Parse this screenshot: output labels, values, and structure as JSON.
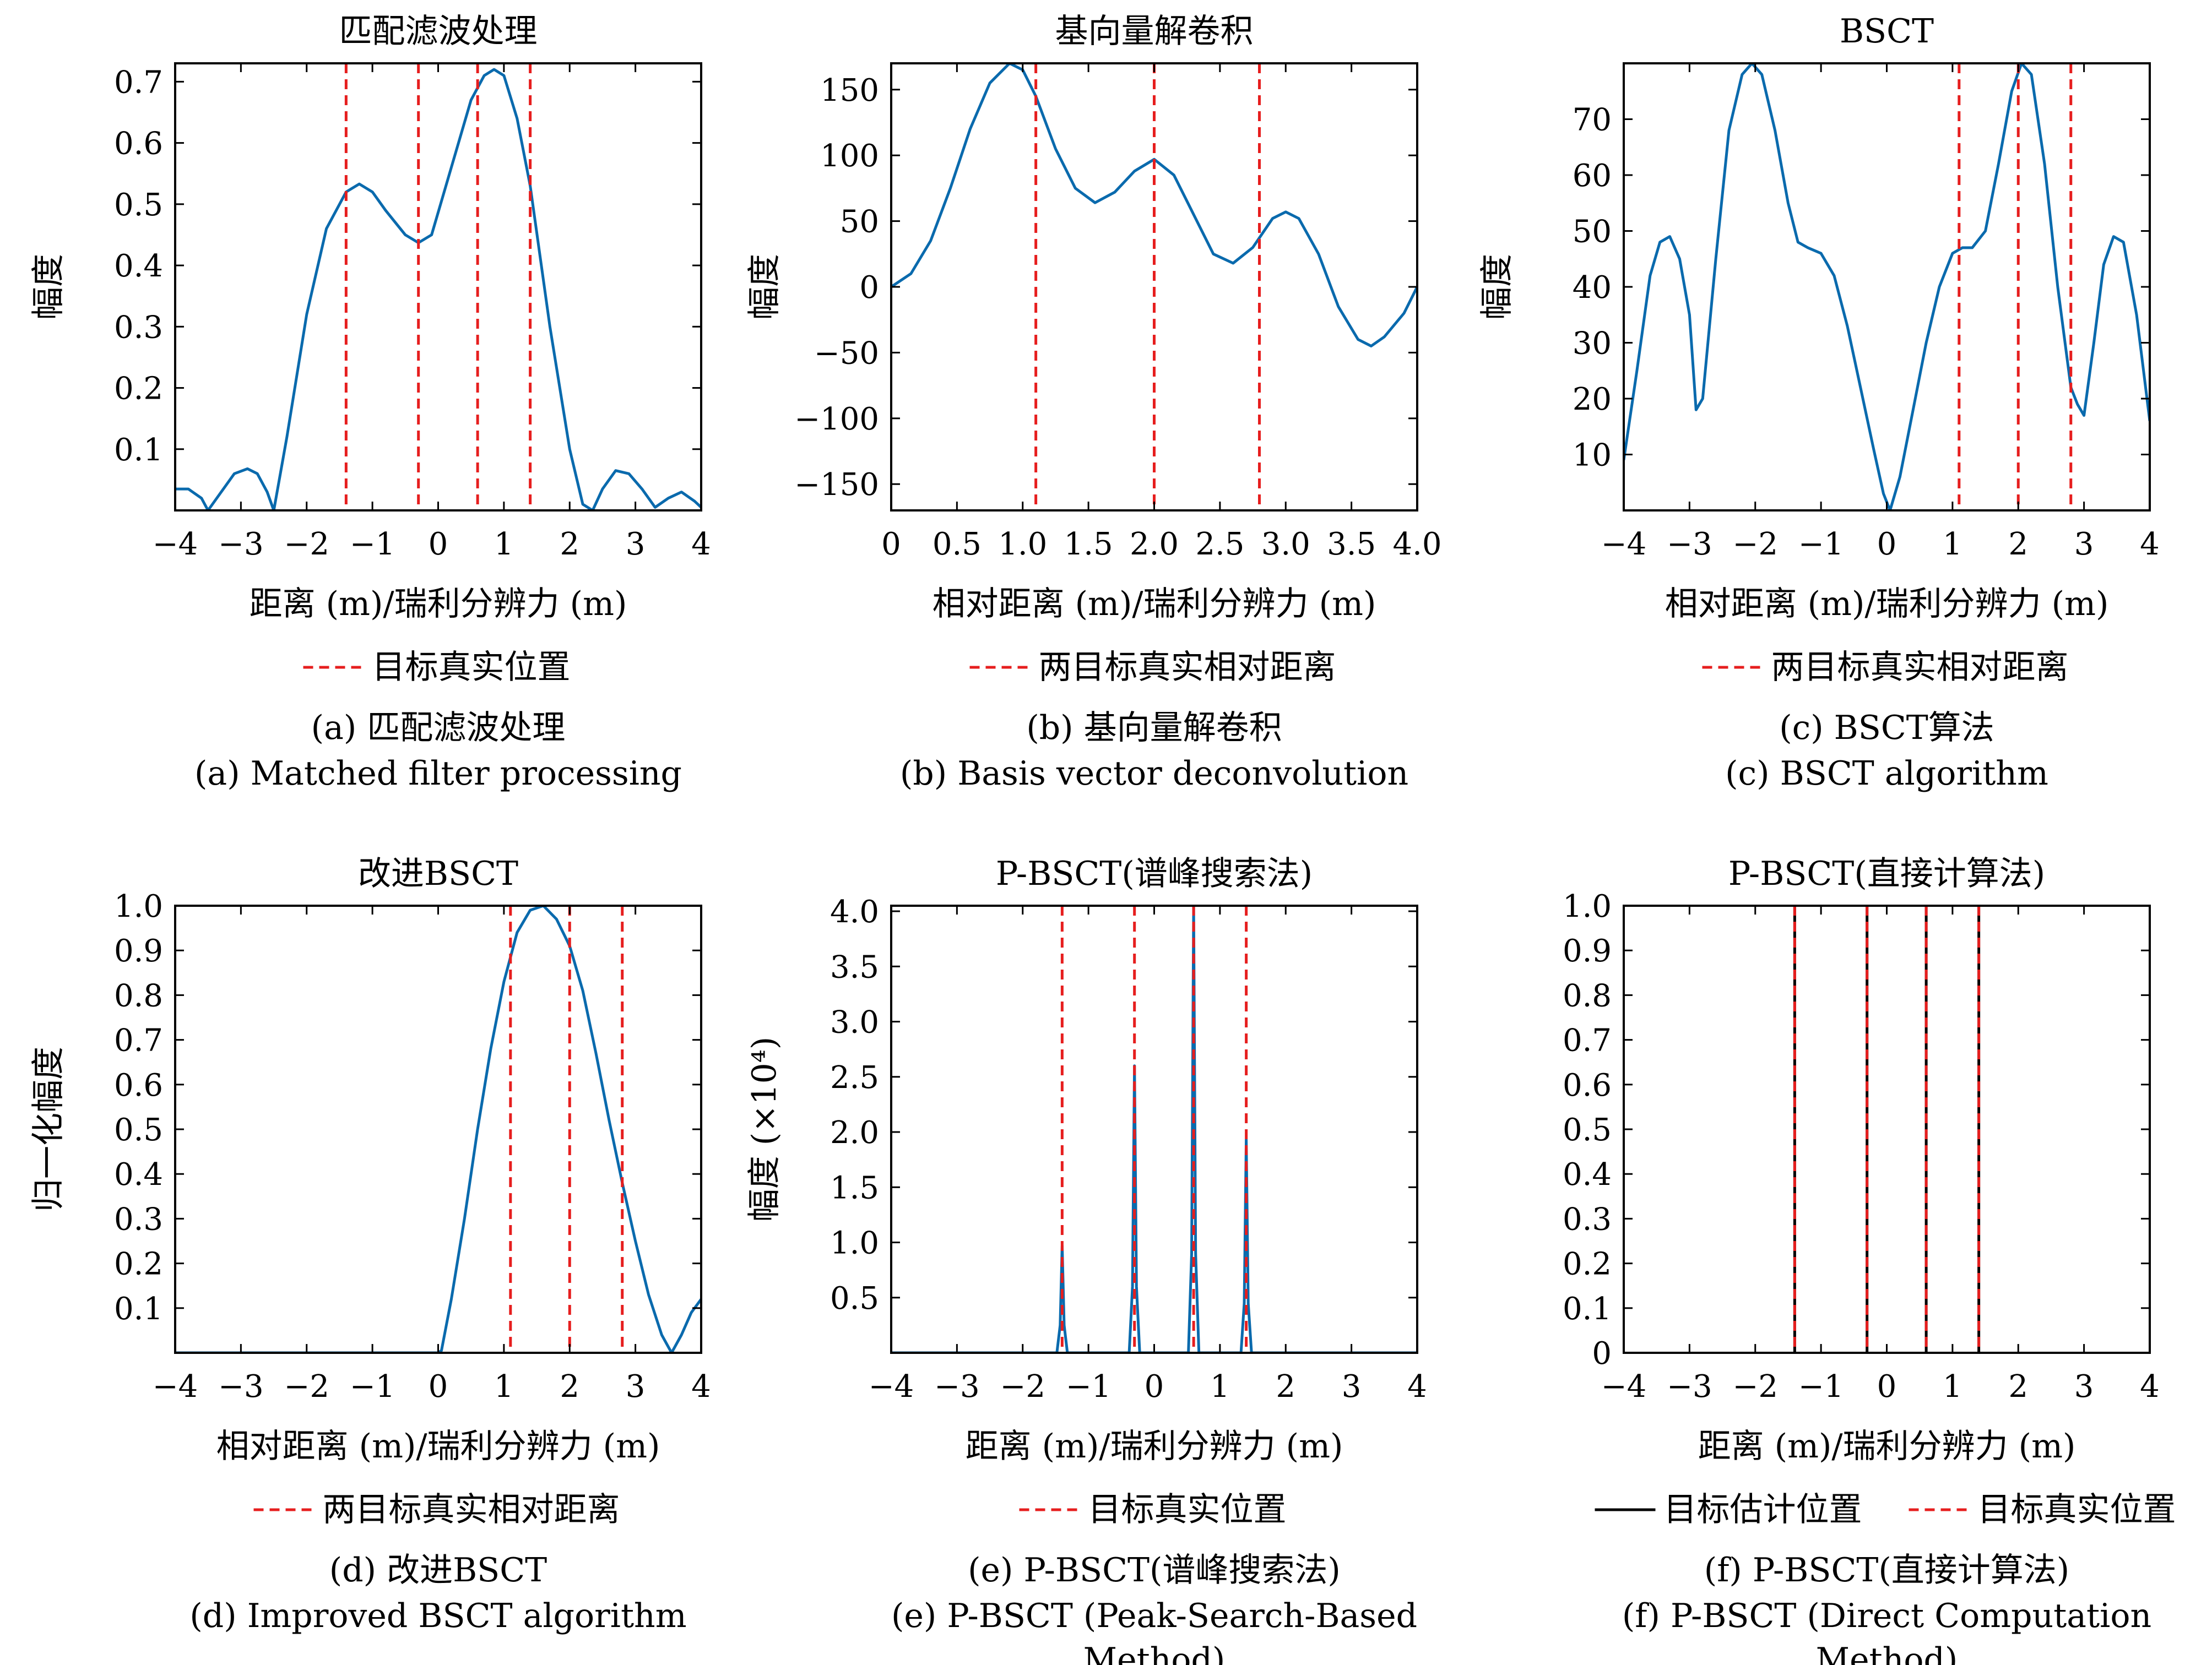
{
  "colors": {
    "curve": "#0a6aad",
    "truth": "#e61e1e",
    "estimate": "#000000",
    "axis": "#000000"
  },
  "chart_data": [
    {
      "id": "a",
      "type": "line",
      "title": "匹配滤波处理",
      "xlabel": "距离 (m)/瑞利分辨力 (m)",
      "ylabel": "幅度",
      "xlim": [
        -4,
        4
      ],
      "ylim": [
        0,
        0.73
      ],
      "xticks": [
        -4,
        -3,
        -2,
        -1,
        0,
        1,
        2,
        3,
        4
      ],
      "xtick_labels": [
        "−4",
        "−3",
        "−2",
        "−1",
        "0",
        "1",
        "2",
        "3",
        "4"
      ],
      "yticks": [
        0.1,
        0.2,
        0.3,
        0.4,
        0.5,
        0.6,
        0.7
      ],
      "ytick_labels": [
        "0.1",
        "0.2",
        "0.3",
        "0.4",
        "0.5",
        "0.6",
        "0.7"
      ],
      "series": [
        {
          "x": [
            -4,
            -3.8,
            -3.6,
            -3.5,
            -3.3,
            -3.1,
            -2.9,
            -2.75,
            -2.6,
            -2.5,
            -2.3,
            -2.0,
            -1.7,
            -1.4,
            -1.2,
            -1.0,
            -0.8,
            -0.5,
            -0.3,
            -0.1,
            0.2,
            0.5,
            0.7,
            0.85,
            1.0,
            1.2,
            1.4,
            1.7,
            2.0,
            2.2,
            2.35,
            2.5,
            2.7,
            2.9,
            3.1,
            3.3,
            3.5,
            3.7,
            3.9,
            4.0
          ],
          "y": [
            0.035,
            0.035,
            0.02,
            0.0,
            0.03,
            0.06,
            0.068,
            0.06,
            0.03,
            0.0,
            0.12,
            0.32,
            0.46,
            0.52,
            0.533,
            0.52,
            0.49,
            0.45,
            0.437,
            0.45,
            0.56,
            0.67,
            0.71,
            0.72,
            0.71,
            0.64,
            0.53,
            0.3,
            0.1,
            0.01,
            0.0,
            0.035,
            0.065,
            0.06,
            0.035,
            0.005,
            0.02,
            0.03,
            0.015,
            0.005
          ]
        }
      ],
      "vlines": [
        -1.4,
        -0.3,
        0.6,
        1.4
      ],
      "legend": [
        {
          "label": "目标真实位置",
          "style": "dashed"
        }
      ]
    },
    {
      "id": "b",
      "type": "line",
      "title": "基向量解卷积",
      "xlabel": "相对距离 (m)/瑞利分辨力 (m)",
      "ylabel": "幅度",
      "xlim": [
        0,
        4
      ],
      "ylim": [
        -170,
        170
      ],
      "xticks": [
        0,
        0.5,
        1,
        1.5,
        2,
        2.5,
        3,
        3.5,
        4
      ],
      "xtick_labels": [
        "0",
        "0.5",
        "1.0",
        "1.5",
        "2.0",
        "2.5",
        "3.0",
        "3.5",
        "4.0"
      ],
      "yticks": [
        -150,
        -100,
        -50,
        0,
        50,
        100,
        150
      ],
      "ytick_labels": [
        "−150",
        "−100",
        "−50",
        "0",
        "50",
        "100",
        "150"
      ],
      "series": [
        {
          "x": [
            0,
            0.15,
            0.3,
            0.45,
            0.6,
            0.75,
            0.9,
            1.0,
            1.1,
            1.25,
            1.4,
            1.55,
            1.7,
            1.85,
            2.0,
            2.15,
            2.3,
            2.45,
            2.6,
            2.75,
            2.9,
            3.0,
            3.1,
            3.25,
            3.4,
            3.55,
            3.65,
            3.75,
            3.9,
            4.0
          ],
          "y": [
            0,
            10,
            35,
            75,
            120,
            155,
            170,
            165,
            145,
            105,
            75,
            64,
            72,
            88,
            97,
            85,
            55,
            25,
            18,
            30,
            52,
            57,
            52,
            25,
            -15,
            -40,
            -45,
            -38,
            -20,
            0
          ]
        }
      ],
      "vlines": [
        1.1,
        2.0,
        2.8
      ],
      "legend": [
        {
          "label": "两目标真实相对距离",
          "style": "dashed"
        }
      ]
    },
    {
      "id": "c",
      "type": "line",
      "title": "BSCT",
      "xlabel": "相对距离 (m)/瑞利分辨力 (m)",
      "ylabel": "幅度",
      "xlim": [
        -4,
        4
      ],
      "ylim": [
        0,
        80
      ],
      "xticks": [
        -4,
        -3,
        -2,
        -1,
        0,
        1,
        2,
        3,
        4
      ],
      "xtick_labels": [
        "−4",
        "−3",
        "−2",
        "−1",
        "0",
        "1",
        "2",
        "3",
        "4"
      ],
      "yticks": [
        10,
        20,
        30,
        40,
        50,
        60,
        70
      ],
      "ytick_labels": [
        "10",
        "20",
        "30",
        "40",
        "50",
        "60",
        "70"
      ],
      "series": [
        {
          "x": [
            -4,
            -3.8,
            -3.6,
            -3.45,
            -3.3,
            -3.15,
            -3.0,
            -2.9,
            -2.8,
            -2.6,
            -2.4,
            -2.2,
            -2.05,
            -1.9,
            -1.7,
            -1.5,
            -1.35,
            -1.2,
            -1.0,
            -0.8,
            -0.6,
            -0.4,
            -0.2,
            -0.05,
            0.05,
            0.2,
            0.4,
            0.6,
            0.8,
            1.0,
            1.15,
            1.3,
            1.5,
            1.7,
            1.9,
            2.05,
            2.2,
            2.4,
            2.6,
            2.8,
            2.9,
            3.0,
            3.15,
            3.3,
            3.45,
            3.6,
            3.8,
            4.0
          ],
          "y": [
            9,
            25,
            42,
            48,
            49,
            45,
            35,
            18,
            20,
            45,
            68,
            78,
            80,
            78,
            68,
            55,
            48,
            47,
            46,
            42,
            33,
            22,
            11,
            3,
            0,
            6,
            18,
            30,
            40,
            46,
            47,
            47,
            50,
            62,
            75,
            80,
            78,
            62,
            40,
            22,
            19,
            17,
            30,
            44,
            49,
            48,
            35,
            16
          ]
        }
      ],
      "vlines": [
        1.1,
        2.0,
        2.8
      ],
      "legend": [
        {
          "label": "两目标真实相对距离",
          "style": "dashed"
        }
      ]
    },
    {
      "id": "d",
      "type": "line",
      "title": "改进BSCT",
      "xlabel": "相对距离 (m)/瑞利分辨力 (m)",
      "ylabel": "归一化幅度",
      "xlim": [
        -4,
        4
      ],
      "ylim": [
        0,
        1.0
      ],
      "xticks": [
        -4,
        -3,
        -2,
        -1,
        0,
        1,
        2,
        3,
        4
      ],
      "xtick_labels": [
        "−4",
        "−3",
        "−2",
        "−1",
        "0",
        "1",
        "2",
        "3",
        "4"
      ],
      "yticks": [
        0.1,
        0.2,
        0.3,
        0.4,
        0.5,
        0.6,
        0.7,
        0.8,
        0.9,
        1.0
      ],
      "ytick_labels": [
        "0.1",
        "0.2",
        "0.3",
        "0.4",
        "0.5",
        "0.6",
        "0.7",
        "0.8",
        "0.9",
        "1.0"
      ],
      "series": [
        {
          "x": [
            -4,
            -2,
            0,
            0.05,
            0.2,
            0.4,
            0.6,
            0.8,
            1.0,
            1.2,
            1.4,
            1.6,
            1.8,
            2.0,
            2.2,
            2.4,
            2.6,
            2.8,
            3.0,
            3.2,
            3.4,
            3.55,
            3.7,
            3.85,
            4.0
          ],
          "y": [
            0,
            0,
            0,
            0.005,
            0.12,
            0.3,
            0.5,
            0.68,
            0.83,
            0.94,
            0.99,
            1.0,
            0.97,
            0.91,
            0.81,
            0.67,
            0.52,
            0.38,
            0.25,
            0.13,
            0.04,
            0.0,
            0.04,
            0.09,
            0.12
          ]
        }
      ],
      "vlines": [
        1.1,
        2.0,
        2.8
      ],
      "legend": [
        {
          "label": "两目标真实相对距离",
          "style": "dashed"
        }
      ]
    },
    {
      "id": "e",
      "type": "line",
      "title": "P-BSCT(谱峰搜索法)",
      "xlabel": "距离 (m)/瑞利分辨力 (m)",
      "ylabel": "幅度 (×10⁴)",
      "xlim": [
        -4,
        4
      ],
      "ylim": [
        0,
        4.05
      ],
      "xticks": [
        -4,
        -3,
        -2,
        -1,
        0,
        1,
        2,
        3,
        4
      ],
      "xtick_labels": [
        "−4",
        "−3",
        "−2",
        "−1",
        "0",
        "1",
        "2",
        "3",
        "4"
      ],
      "yticks": [
        0.5,
        1.0,
        1.5,
        2.0,
        2.5,
        3.0,
        3.5,
        4.0
      ],
      "ytick_labels": [
        "0.5",
        "1.0",
        "1.5",
        "2.0",
        "2.5",
        "3.0",
        "3.5",
        "4.0"
      ],
      "series": [
        {
          "x": [
            -4,
            -1.48,
            -1.43,
            -1.4,
            -1.37,
            -1.32,
            -0.38,
            -0.33,
            -0.3,
            -0.27,
            -0.22,
            0.52,
            0.57,
            0.6,
            0.63,
            0.68,
            1.32,
            1.37,
            1.4,
            1.43,
            1.48,
            4.0
          ],
          "y": [
            0,
            0,
            0.25,
            0.97,
            0.25,
            0,
            0,
            0.6,
            2.6,
            0.6,
            0,
            0,
            0.9,
            4.05,
            0.9,
            0,
            0,
            0.45,
            1.93,
            0.45,
            0,
            0
          ]
        }
      ],
      "vlines": [
        -1.4,
        -0.3,
        0.6,
        1.4
      ],
      "legend": [
        {
          "label": "目标真实位置",
          "style": "dashed"
        }
      ]
    },
    {
      "id": "f",
      "type": "line",
      "title": "P-BSCT(直接计算法)",
      "xlabel": "距离 (m)/瑞利分辨力 (m)",
      "ylabel": "",
      "xlim": [
        -4,
        4
      ],
      "ylim": [
        0,
        1.0
      ],
      "xticks": [
        -4,
        -3,
        -2,
        -1,
        0,
        1,
        2,
        3,
        4
      ],
      "xtick_labels": [
        "−4",
        "−3",
        "−2",
        "−1",
        "0",
        "1",
        "2",
        "3",
        "4"
      ],
      "yticks": [
        0,
        0.1,
        0.2,
        0.3,
        0.4,
        0.5,
        0.6,
        0.7,
        0.8,
        0.9,
        1.0
      ],
      "ytick_labels": [
        "0",
        "0.1",
        "0.2",
        "0.3",
        "0.4",
        "0.5",
        "0.6",
        "0.7",
        "0.8",
        "0.9",
        "1.0"
      ],
      "series": [],
      "solid_vlines": [
        -1.4,
        -0.3,
        0.6,
        1.4
      ],
      "vlines": [
        -1.4,
        -0.3,
        0.6,
        1.4
      ],
      "legend": [
        {
          "label": "目标估计位置",
          "style": "solid"
        },
        {
          "label": "目标真实位置",
          "style": "dashed"
        }
      ]
    }
  ],
  "captions": [
    {
      "zh": "(a) 匹配滤波处理",
      "en": [
        "(a) Matched filter processing"
      ]
    },
    {
      "zh": "(b) 基向量解卷积",
      "en": [
        "(b) Basis vector deconvolution"
      ]
    },
    {
      "zh": "(c) BSCT算法",
      "en": [
        "(c) BSCT algorithm"
      ]
    },
    {
      "zh": "(d) 改进BSCT",
      "en": [
        "(d) Improved BSCT algorithm"
      ]
    },
    {
      "zh": "(e) P-BSCT(谱峰搜索法)",
      "en": [
        "(e) P-BSCT (Peak-Search-Based",
        "Method)"
      ]
    },
    {
      "zh": "(f) P-BSCT(直接计算法)",
      "en": [
        "(f) P-BSCT (Direct Computation",
        "Method)"
      ]
    }
  ]
}
